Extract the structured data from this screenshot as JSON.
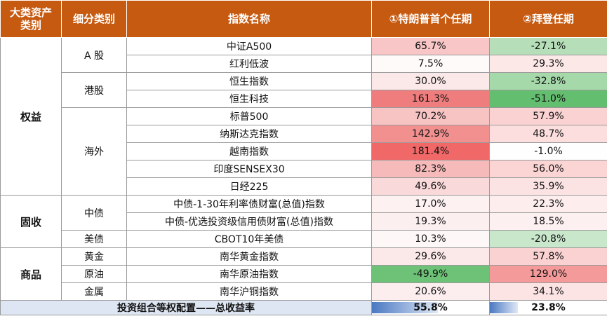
{
  "header": {
    "col1": "大类资产类别",
    "col2": "细分类别",
    "col3": "指数名称",
    "col4": "①特朗普首个任期",
    "col5": "②拜登任期"
  },
  "groups": [
    {
      "major": "权益",
      "subgroups": [
        {
          "sub": "A 股",
          "rows": [
            {
              "index": "中证A500",
              "trump": "65.7%",
              "trump_bg": "#f8c6c6",
              "biden": "-27.1%",
              "biden_bg": "#b6dfb9"
            },
            {
              "index": "红利低波",
              "trump": "7.5%",
              "trump_bg": "#fffafa",
              "biden": "29.3%",
              "biden_bg": "#fde8e8"
            }
          ]
        },
        {
          "sub": "港股",
          "rows": [
            {
              "index": "恒生指数",
              "trump": "30.0%",
              "trump_bg": "#fbe8e8",
              "biden": "-32.8%",
              "biden_bg": "#a6d9aa"
            },
            {
              "index": "恒生科技",
              "trump": "161.3%",
              "trump_bg": "#f07d7d",
              "biden": "-51.0%",
              "biden_bg": "#63be6f"
            }
          ]
        },
        {
          "sub": "海外",
          "rows": [
            {
              "index": "标普500",
              "trump": "70.2%",
              "trump_bg": "#f7c3c3",
              "biden": "57.9%",
              "biden_bg": "#fbd2d2"
            },
            {
              "index": "纳斯达克指数",
              "trump": "142.9%",
              "trump_bg": "#f29090",
              "biden": "48.7%",
              "biden_bg": "#fcdede"
            },
            {
              "index": "越南指数",
              "trump": "181.4%",
              "trump_bg": "#f16868",
              "biden": "-1.0%",
              "biden_bg": "#fdfefd"
            },
            {
              "index": "印度SENSEX30",
              "trump": "82.3%",
              "trump_bg": "#f6baba",
              "biden": "56.0%",
              "biden_bg": "#fbd4d4"
            },
            {
              "index": "日经225",
              "trump": "49.6%",
              "trump_bg": "#f9d9d9",
              "biden": "35.9%",
              "biden_bg": "#fce3e3"
            }
          ]
        }
      ]
    },
    {
      "major": "固收",
      "subgroups": [
        {
          "sub": "中债",
          "rows": [
            {
              "index": "中债-1-30年利率债财富(总值)指数",
              "trump": "17.0%",
              "trump_bg": "#fdf1f1",
              "biden": "22.3%",
              "biden_bg": "#fdeded"
            },
            {
              "index": "中债-优选投资级信用债财富(总值)指数",
              "trump": "19.3%",
              "trump_bg": "#fcefef",
              "biden": "18.5%",
              "biden_bg": "#fdf0f0"
            }
          ]
        },
        {
          "sub": "美债",
          "rows": [
            {
              "index": "CBOT10年美债",
              "trump": "10.3%",
              "trump_bg": "#fef7f7",
              "biden": "-20.8%",
              "biden_bg": "#c9e7cb"
            }
          ]
        }
      ]
    },
    {
      "major": "商品",
      "subgroups": [
        {
          "sub": "黄金",
          "rows": [
            {
              "index": "南华黄金指数",
              "trump": "29.6%",
              "trump_bg": "#fbe8e8",
              "biden": "57.8%",
              "biden_bg": "#fbd2d2"
            }
          ]
        },
        {
          "sub": "原油",
          "rows": [
            {
              "index": "南华原油指数",
              "trump": "-49.9%",
              "trump_bg": "#6dc277",
              "biden": "129.0%",
              "biden_bg": "#f49a9a"
            }
          ]
        },
        {
          "sub": "金属",
          "rows": [
            {
              "index": "南华沪铜指数",
              "trump": "20.6%",
              "trump_bg": "#fceeee",
              "biden": "34.1%",
              "biden_bg": "#fce4e4"
            }
          ]
        }
      ]
    }
  ],
  "footer": {
    "label": "投资组合等权配置——总收益率",
    "trump": "55.8%",
    "trump_fill": 0.56,
    "biden": "23.8%",
    "biden_fill": 0.24,
    "bar_color": "#4a78c2"
  }
}
